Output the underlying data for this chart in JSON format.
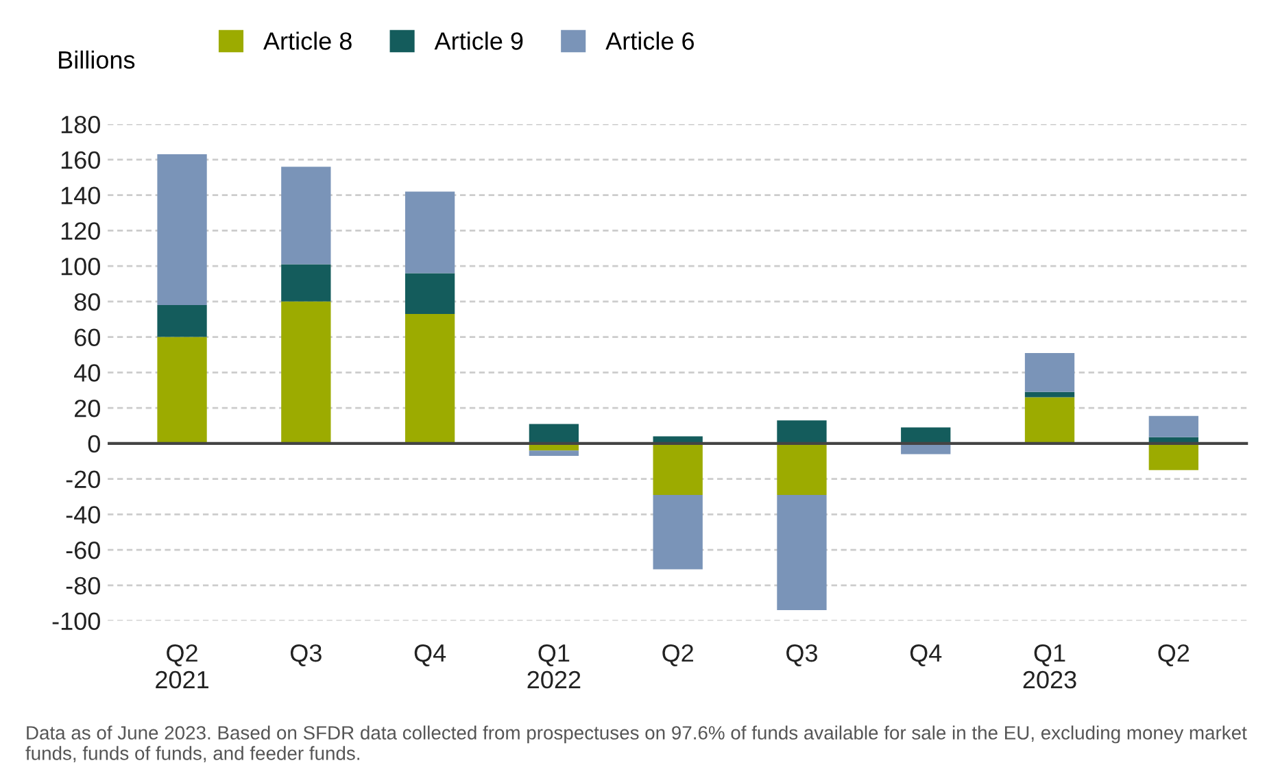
{
  "chart_data": {
    "type": "bar",
    "stacked": true,
    "ylabel": "Billions",
    "categories": [
      "Q2\n2021",
      "Q3",
      "Q4",
      "Q1\n2022",
      "Q2",
      "Q3",
      "Q4",
      "Q1\n2023",
      "Q2"
    ],
    "series": [
      {
        "name": "Article 8",
        "color": "#9cab00",
        "values": [
          60,
          80,
          73,
          -4,
          -29,
          -29,
          null,
          26,
          -15
        ]
      },
      {
        "name": "Article 9",
        "color": "#145c5c",
        "values": [
          18,
          21,
          23,
          11,
          4,
          13,
          9,
          3,
          3.5
        ]
      },
      {
        "name": "Article 6",
        "color": "#7a94b8",
        "values": [
          85,
          55,
          46,
          -3,
          -42,
          -65,
          -6,
          22,
          12
        ]
      }
    ],
    "ylim": [
      -100,
      180
    ],
    "yticks": [
      -100,
      -80,
      -60,
      -40,
      -20,
      0,
      20,
      40,
      60,
      80,
      100,
      120,
      140,
      160,
      180
    ],
    "grid": "y",
    "legend": "top left",
    "annotations": [
      "Data as of June 2023. Based on SFDR data collected from prospectuses on 97.6% of funds available for sale in the EU, excluding money market funds, funds of funds, and feeder funds."
    ]
  }
}
